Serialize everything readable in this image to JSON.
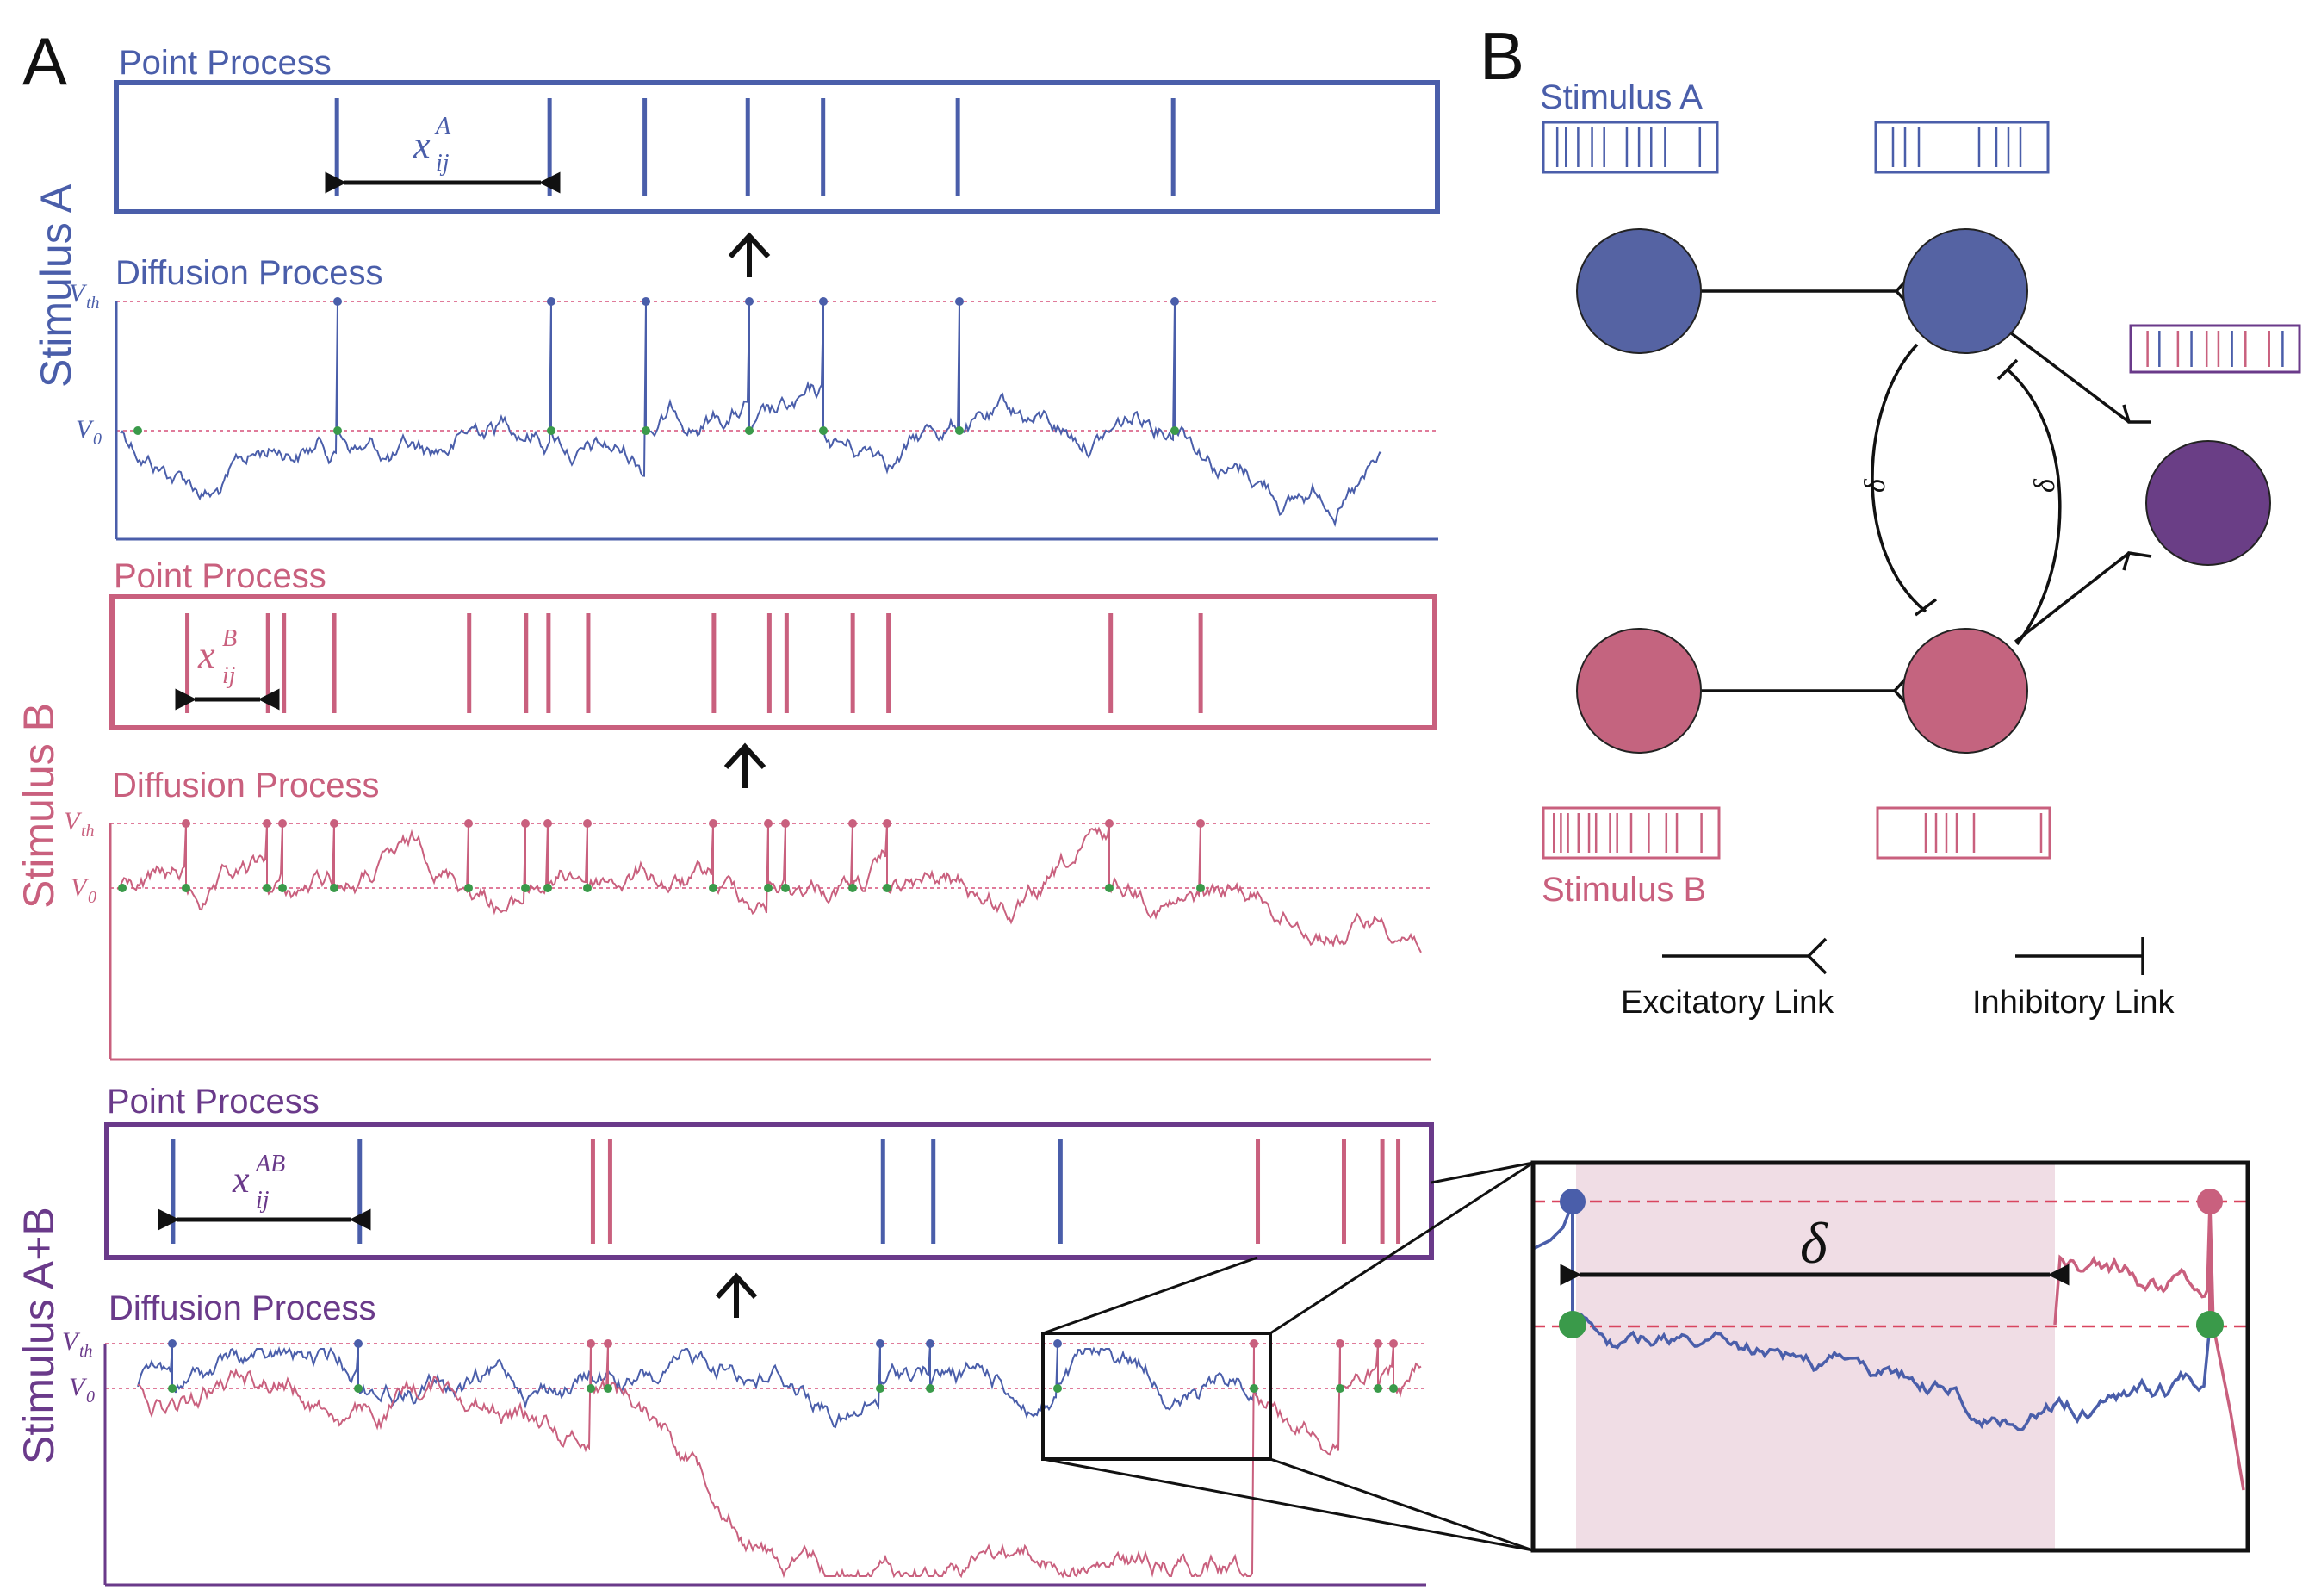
{
  "colors": {
    "blue": "#4a5eaa",
    "pink": "#c9607e",
    "purple": "#6a3a8a",
    "green": "#3a9a4a",
    "blue_node": "#5563a3",
    "pink_node": "#c4647f",
    "purple_node": "#6a3e86",
    "shade": "#f0dde5"
  },
  "panel_a": {
    "letter": "A",
    "point_process_label": "Point Process",
    "diffusion_process_label": "Diffusion Process",
    "v_th": "V",
    "v_th_sub": "th",
    "v_0": "V",
    "v_0_sub": "0",
    "stimulus_a": {
      "side_label": "Stimulus A",
      "x_label": "x",
      "x_sup": "A",
      "x_sub": "ij"
    },
    "stimulus_b": {
      "side_label": "Stimulus B",
      "x_label": "x",
      "x_sup": "B",
      "x_sub": "ij"
    },
    "stimulus_ab": {
      "side_label": "Stimulus A+B",
      "x_label": "x",
      "x_sup": "AB",
      "x_sub": "ij"
    },
    "zoom": {
      "delta": "δ"
    }
  },
  "panel_b": {
    "letter": "B",
    "stimulus_a_label": "Stimulus A",
    "stimulus_b_label": "Stimulus B",
    "delta_left": "δ",
    "delta_right": "δ",
    "excitatory_label": "Excitatory Link",
    "inhibitory_label": "Inhibitory Link"
  },
  "spike_trains": {
    "a_spikes": [
      0.167,
      0.328,
      0.4,
      0.478,
      0.535,
      0.637,
      0.8
    ],
    "b_spikes": [
      0.057,
      0.118,
      0.13,
      0.168,
      0.27,
      0.313,
      0.33,
      0.36,
      0.455,
      0.497,
      0.51,
      0.56,
      0.587,
      0.755,
      0.823
    ],
    "ab_blue_spikes": [
      0.05,
      0.191,
      0.586,
      0.624,
      0.72
    ],
    "ab_pink_spikes": [
      0.367,
      0.38,
      0.869,
      0.934,
      0.963,
      0.975
    ]
  }
}
